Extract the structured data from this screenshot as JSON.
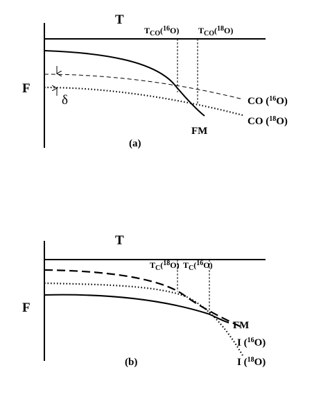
{
  "panel_a": {
    "x_label": "T",
    "y_label": "F",
    "delta": "δ",
    "fm": "FM",
    "caption": "(a)",
    "tc_labels": [
      {
        "t": "T",
        "sub": "CO",
        "open": "(",
        "sup": "16",
        "close": "O)"
      },
      {
        "t": "T",
        "sub": "CO",
        "open": "(",
        "sup": "18",
        "close": "O)"
      }
    ],
    "curves": [
      {
        "name": "CO (",
        "sup": "16",
        "close": "O)"
      },
      {
        "name": "CO (",
        "sup": "18",
        "close": "O)"
      }
    ]
  },
  "panel_b": {
    "x_label": "T",
    "y_label": "F",
    "fm": "FM",
    "caption": "(b)",
    "tc_labels": [
      {
        "t": "T",
        "sub": "C",
        "open": "(",
        "sup": "18",
        "close": "O)"
      },
      {
        "t": "T",
        "sub": "C",
        "open": "(",
        "sup": "16",
        "close": "O)"
      }
    ],
    "curves": [
      {
        "name": "I (",
        "sup": "16",
        "close": "O)"
      },
      {
        "name": "I (",
        "sup": "18",
        "close": "O)"
      }
    ]
  }
}
